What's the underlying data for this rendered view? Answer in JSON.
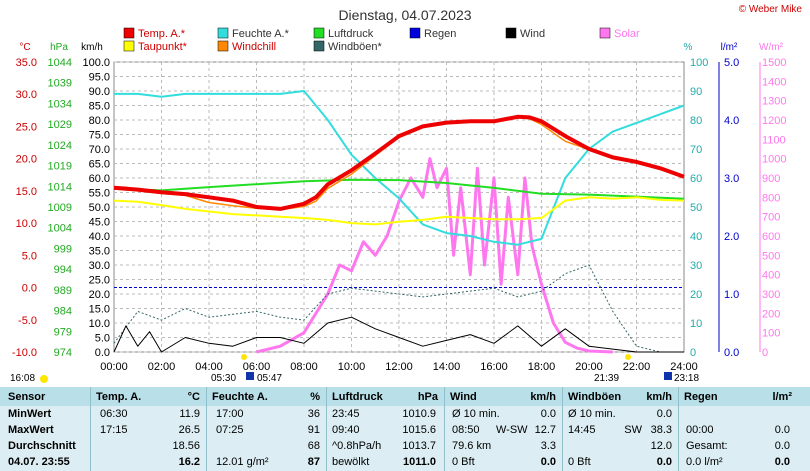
{
  "title": "Dienstag, 04.07.2023",
  "copyright": "© Weber Mike",
  "colors": {
    "temp": "#ee0000",
    "dew": "#ffff00",
    "humidity": "#33dddd",
    "windchill": "#ff8800",
    "pressure": "#22dd22",
    "gust": "#336666",
    "rain": "#0000dd",
    "wind": "#000000",
    "solar": "#ff77ee"
  },
  "legend": [
    {
      "label": "Temp. A.*",
      "color": "#ee0000"
    },
    {
      "label": "Taupunkt*",
      "color": "#ffff00"
    },
    {
      "label": "Feuchte A.*",
      "color": "#33dddd"
    },
    {
      "label": "Windchill",
      "color": "#ff8800"
    },
    {
      "label": "Luftdruck",
      "color": "#22dd22"
    },
    {
      "label": "Windböen*",
      "color": "#336666"
    },
    {
      "label": "Regen",
      "color": "#0000dd"
    },
    {
      "label": "Wind",
      "color": "#000000"
    },
    {
      "label": "Solar",
      "color": "#ff77ee"
    }
  ],
  "axis_headers": {
    "temp": "°C",
    "pressure": "hPa",
    "wind": "km/h",
    "humidity": "%",
    "rain": "l/m²",
    "solar": "W/m²"
  },
  "time_labels": {
    "sunrise": "05:30",
    "sunrise2": "05:47",
    "sunset": "21:39",
    "moon": "23:18",
    "left": "16:08"
  },
  "chart_data": {
    "type": "line",
    "x_ticks": [
      "00:00",
      "02:00",
      "04:00",
      "06:00",
      "08:00",
      "10:00",
      "12:00",
      "14:00",
      "16:00",
      "18:00",
      "20:00",
      "22:00",
      "24:00"
    ],
    "axes": {
      "temp": {
        "min": -10,
        "max": 35,
        "ticks": [
          "35.0",
          "30.0",
          "25.0",
          "20.0",
          "15.0",
          "10.0",
          "5.0",
          "0.0",
          "-5.0",
          "-10.0"
        ]
      },
      "pressure": {
        "min": 974,
        "max": 1044,
        "ticks": [
          "1044",
          "1039",
          "1034",
          "1029",
          "1024",
          "1019",
          "1014",
          "1009",
          "1004",
          "999",
          "994",
          "989",
          "984",
          "979",
          "974"
        ]
      },
      "wind": {
        "min": 0,
        "max": 100,
        "ticks": [
          "100.0",
          "95.0",
          "90.0",
          "85.0",
          "80.0",
          "75.0",
          "70.0",
          "65.0",
          "60.0",
          "55.0",
          "50.0",
          "45.0",
          "40.0",
          "35.0",
          "30.0",
          "25.0",
          "20.0",
          "15.0",
          "10.0",
          "5.0",
          "0.0"
        ]
      },
      "humidity": {
        "min": 0,
        "max": 100,
        "ticks": [
          "100",
          "90",
          "80",
          "70",
          "60",
          "50",
          "40",
          "30",
          "20",
          "10",
          "0"
        ]
      },
      "rain": {
        "min": 0,
        "max": 5,
        "ticks": [
          "5.0",
          "4.0",
          "3.0",
          "2.0",
          "1.0",
          "0.0"
        ]
      },
      "solar": {
        "min": 0,
        "max": 1500,
        "ticks": [
          "1500",
          "1400",
          "1300",
          "1200",
          "1100",
          "1000",
          "900",
          "800",
          "700",
          "600",
          "500",
          "400",
          "300",
          "200",
          "100",
          "0"
        ]
      }
    },
    "series": [
      {
        "name": "Temp. A.*",
        "axis": "temp",
        "x": [
          0,
          1,
          2,
          3,
          4,
          5,
          6,
          7,
          8,
          8.5,
          9,
          10,
          11,
          12,
          13,
          14,
          15,
          16,
          17,
          17.5,
          18,
          19,
          20,
          21,
          22,
          23,
          24
        ],
        "values": [
          15.5,
          15.2,
          14.8,
          14.5,
          14,
          13.5,
          12.5,
          12.2,
          13,
          14,
          16,
          18.2,
          20.8,
          23.5,
          25,
          25.6,
          25.8,
          25.8,
          26.5,
          26.4,
          25.8,
          23.5,
          21.5,
          20.2,
          19.5,
          18.5,
          17.2
        ]
      },
      {
        "name": "Taupunkt*",
        "axis": "temp",
        "x": [
          0,
          1,
          2,
          3,
          4,
          5,
          6,
          7,
          8,
          9,
          10,
          11,
          12,
          13,
          14,
          15,
          16,
          17,
          18,
          19,
          20,
          21,
          22,
          23,
          24
        ],
        "values": [
          13.5,
          13.3,
          12.8,
          12.2,
          11.8,
          11.4,
          11.2,
          11,
          10.8,
          10.5,
          10,
          9.8,
          10.2,
          10.5,
          11,
          10.8,
          10.6,
          10.6,
          10.8,
          13.5,
          14,
          13.8,
          14,
          13.6,
          13.5
        ]
      },
      {
        "name": "Windchill",
        "axis": "temp",
        "x": [
          0,
          1,
          2,
          3,
          4,
          5,
          6,
          7,
          8,
          8.5,
          9,
          10,
          11,
          12,
          13,
          14,
          15,
          16,
          17,
          17.5,
          18,
          19,
          20,
          21,
          22,
          23,
          24
        ],
        "values": [
          15.3,
          15,
          14.6,
          14.3,
          13.2,
          12.7,
          12.3,
          12.1,
          12.6,
          13.4,
          15.4,
          17.6,
          20.5,
          23.3,
          24.9,
          25.5,
          25.8,
          25.8,
          26.4,
          26.2,
          25.3,
          22.7,
          21.4,
          20.2,
          19.5,
          18.5,
          17.2
        ]
      },
      {
        "name": "Feuchte A.*",
        "axis": "humidity",
        "x": [
          0,
          1,
          2,
          3,
          4,
          5,
          6,
          7,
          8,
          9,
          10,
          11,
          12,
          13,
          14,
          15,
          16,
          17,
          18,
          19,
          20,
          21,
          22,
          23,
          24
        ],
        "values": [
          89,
          89,
          88,
          89,
          89,
          89,
          89,
          89,
          90,
          80,
          68,
          60,
          53,
          44,
          41,
          40,
          38,
          37,
          39,
          60,
          70,
          76,
          79,
          82,
          85
        ]
      },
      {
        "name": "Luftdruck",
        "axis": "pressure",
        "x": [
          0,
          2,
          4,
          6,
          8,
          10,
          12,
          14,
          16,
          18,
          20,
          22,
          24
        ],
        "values": [
          1013.5,
          1013,
          1013.8,
          1014.5,
          1015.2,
          1015.6,
          1015.5,
          1014.8,
          1013.6,
          1012.2,
          1012,
          1011.5,
          1011
        ]
      },
      {
        "name": "Wind",
        "axis": "wind",
        "x": [
          0,
          0.5,
          1,
          1.5,
          2,
          3,
          4,
          5,
          6,
          7,
          8,
          9,
          10,
          11,
          12,
          13,
          14,
          15,
          16,
          17,
          18,
          19,
          20,
          21,
          22,
          23,
          24
        ],
        "values": [
          0,
          9,
          2,
          7,
          0,
          5,
          3,
          2,
          5,
          5,
          3,
          10,
          12,
          8,
          5,
          2,
          4,
          6,
          3,
          9,
          2,
          8,
          2,
          1,
          0,
          0,
          0
        ]
      },
      {
        "name": "Windböen*",
        "axis": "wind",
        "x": [
          0,
          1,
          2,
          3,
          4,
          5,
          6,
          7,
          8,
          9,
          10,
          11,
          12,
          13,
          14,
          15,
          16,
          17,
          18,
          19,
          20,
          21,
          22,
          23,
          24
        ],
        "values": [
          3,
          14,
          11,
          15,
          12,
          13,
          14,
          12,
          11,
          20,
          22,
          21,
          20,
          19,
          20,
          21,
          22,
          19,
          21,
          27,
          30,
          14,
          2,
          0,
          0
        ]
      },
      {
        "name": "Solar",
        "axis": "solar",
        "x": [
          6,
          7,
          8,
          9,
          9.5,
          10,
          10.5,
          11,
          11.5,
          12,
          12.5,
          13,
          13.3,
          13.6,
          14,
          14.3,
          14.6,
          15,
          15.3,
          15.6,
          16,
          16.3,
          16.6,
          17,
          17.3,
          17.6,
          18,
          18.5,
          19,
          19.5,
          20,
          21
        ],
        "values": [
          0,
          30,
          100,
          300,
          450,
          420,
          570,
          500,
          600,
          780,
          900,
          800,
          1000,
          850,
          950,
          500,
          850,
          400,
          950,
          450,
          900,
          350,
          800,
          400,
          900,
          550,
          350,
          150,
          50,
          20,
          5,
          0
        ]
      }
    ]
  },
  "table": {
    "headers": [
      "Sensor",
      "Temp. A.",
      "°C",
      "Feuchte A.",
      "%",
      "Luftdruck",
      "hPa",
      "Wind",
      "km/h",
      "Windböen",
      "km/h",
      "Regen",
      "l/m²"
    ],
    "rows": [
      {
        "label": "MinWert",
        "temp_time": "06:30",
        "temp": "11.9",
        "hum_time": "17:00",
        "hum": "36",
        "pres_time": "23:45",
        "pres": "1010.9",
        "wind_a": "Ø 10 min.",
        "wind_b": "",
        "wind_v": "0.0",
        "gust_a": "Ø 10 min.",
        "gust_b": "",
        "gust_v": "0.0",
        "rain_a": "",
        "rain_v": ""
      },
      {
        "label": "MaxWert",
        "temp_time": "17:15",
        "temp": "26.5",
        "hum_time": "07:25",
        "hum": "91",
        "pres_time": "09:40",
        "pres": "1015.6",
        "wind_a": "08:50",
        "wind_b": "W-SW",
        "wind_v": "12.7",
        "gust_a": "14:45",
        "gust_b": "SW",
        "gust_v": "38.3",
        "rain_a": "00:00",
        "rain_v": "0.0"
      },
      {
        "label": "Durchschnitt",
        "temp_time": "",
        "temp": "18.56",
        "hum_time": "",
        "hum": "68",
        "pres_time": "^0.8hPa/h",
        "pres": "1013.7",
        "wind_a": "79.6 km",
        "wind_b": "",
        "wind_v": "3.3",
        "gust_a": "",
        "gust_b": "",
        "gust_v": "12.0",
        "rain_a": "Gesamt:",
        "rain_v": "0.0"
      },
      {
        "label": "04.07. 23:55",
        "temp_time": "",
        "temp": "16.2",
        "hum_time": "12.01 g/m²",
        "hum": "87",
        "pres_time": "bewölkt",
        "pres": "1011.0",
        "wind_a": "0 Bft",
        "wind_b": "",
        "wind_v": "0.0",
        "gust_a": "0 Bft",
        "gust_b": "",
        "gust_v": "0.0",
        "rain_a": "0.0 l/m²",
        "rain_v": "0.0"
      }
    ]
  }
}
